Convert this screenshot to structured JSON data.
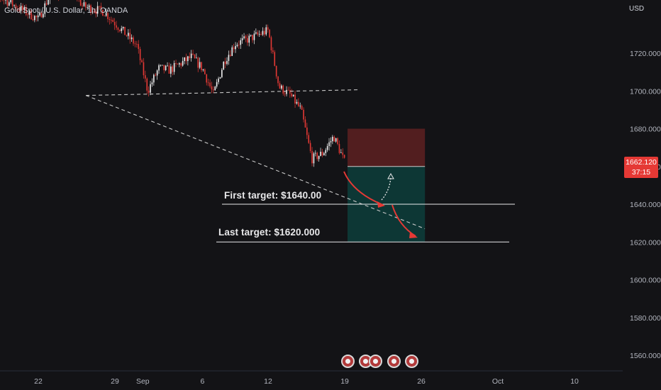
{
  "header": {
    "symbol_title": "Gold Spot / U.S. Dollar, 1h, OANDA",
    "currency": "USD"
  },
  "price_badge": {
    "price": "1662.120",
    "countdown": "37:15",
    "color": "#e53935"
  },
  "annotations": {
    "first_target": "First target: $1640.00",
    "last_target": "Last target: $1620.000"
  },
  "events": {
    "icon": "us-flag-economic-event-icon",
    "count": 5
  },
  "chart_data": {
    "type": "candlestick",
    "title": "",
    "xlabel": "",
    "ylabel": "",
    "x_tick_labels": [
      "22",
      "29",
      "Sep",
      "6",
      "12",
      "19",
      "26",
      "Oct",
      "10"
    ],
    "y_tick_labels": [
      "1720.000",
      "1700.000",
      "1680.000",
      "1660.000",
      "1640.000",
      "1620.000",
      "1600.000",
      "1580.000",
      "1560.000"
    ],
    "y_ticks": [
      1720,
      1700,
      1680,
      1660,
      1640,
      1620,
      1600,
      1580,
      1560
    ],
    "ylim": [
      1552,
      1762
    ],
    "colors": {
      "up": "#f2f2f2",
      "down": "#e53935",
      "background": "#131316"
    },
    "price_path": [
      [
        "2022-08-17",
        1758
      ],
      [
        "2022-08-18",
        1752
      ],
      [
        "2022-08-19",
        1748
      ],
      [
        "2022-08-22",
        1738
      ],
      [
        "2022-08-23",
        1750
      ],
      [
        "2022-08-24",
        1752
      ],
      [
        "2022-08-25",
        1758
      ],
      [
        "2022-08-26",
        1745
      ],
      [
        "2022-08-28",
        1742
      ],
      [
        "2022-08-29",
        1736
      ],
      [
        "2022-08-30",
        1730
      ],
      [
        "2022-08-31",
        1724
      ],
      [
        "2022-09-01",
        1700
      ],
      [
        "2022-09-02",
        1712
      ],
      [
        "2022-09-03",
        1711
      ],
      [
        "2022-09-05",
        1718
      ],
      [
        "2022-09-06",
        1712
      ],
      [
        "2022-09-07",
        1698
      ],
      [
        "2022-09-08",
        1716
      ],
      [
        "2022-09-09",
        1725
      ],
      [
        "2022-09-10",
        1727
      ],
      [
        "2022-09-12",
        1732
      ],
      [
        "2022-09-13",
        1702
      ],
      [
        "2022-09-14",
        1698
      ],
      [
        "2022-09-15",
        1690
      ],
      [
        "2022-09-16",
        1664
      ],
      [
        "2022-09-17",
        1667
      ],
      [
        "2022-09-18",
        1676
      ],
      [
        "2022-09-19",
        1662
      ]
    ],
    "trendlines": [
      {
        "name": "",
        "style": "dashed",
        "from": [
          "2022-08-27",
          1695
        ],
        "to": [
          "2022-09-20",
          1695
        ]
      },
      {
        "name": "",
        "style": "dashed",
        "from": [
          "2022-08-27",
          1695
        ],
        "to": [
          "2022-09-26",
          1627
        ]
      }
    ],
    "position": {
      "type": "short",
      "entry": 1660,
      "stop": 1680,
      "target": 1620,
      "start": "2022-09-19",
      "end": "2022-09-24"
    },
    "target_lines": [
      {
        "label": "First target: $1640.00",
        "price": 1640
      },
      {
        "label": "Last target: $1620.000",
        "price": 1620
      }
    ],
    "current_price": 1662.12
  }
}
